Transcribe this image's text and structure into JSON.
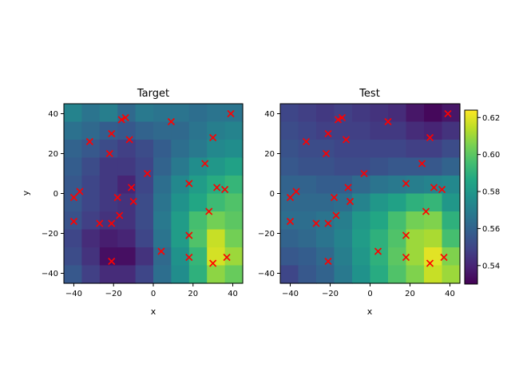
{
  "chart_data": [
    {
      "type": "heatmap",
      "title": "Target",
      "xlabel": "x",
      "ylabel": "y",
      "xlim": [
        -45,
        45
      ],
      "ylim": [
        -45,
        45
      ],
      "xticks": [
        -40,
        -20,
        0,
        20,
        40
      ],
      "yticks": [
        -40,
        -20,
        0,
        20,
        40
      ],
      "grid_x_edges": [
        -45,
        -36,
        -27,
        -18,
        -9,
        0,
        9,
        18,
        27,
        36,
        45
      ],
      "grid_y_edges": [
        -45,
        -36,
        -27,
        -18,
        -9,
        0,
        9,
        18,
        27,
        36,
        45
      ],
      "z_rows_top_to_bottom": [
        [
          0.572,
          0.566,
          0.57,
          0.562,
          0.568,
          0.566,
          0.566,
          0.564,
          0.566,
          0.566
        ],
        [
          0.565,
          0.562,
          0.558,
          0.556,
          0.56,
          0.562,
          0.562,
          0.566,
          0.57,
          0.572
        ],
        [
          0.56,
          0.556,
          0.552,
          0.548,
          0.552,
          0.558,
          0.564,
          0.568,
          0.574,
          0.576
        ],
        [
          0.558,
          0.552,
          0.546,
          0.546,
          0.55,
          0.56,
          0.568,
          0.576,
          0.58,
          0.584
        ],
        [
          0.556,
          0.55,
          0.546,
          0.54,
          0.55,
          0.564,
          0.574,
          0.582,
          0.588,
          0.592
        ],
        [
          0.556,
          0.55,
          0.546,
          0.544,
          0.552,
          0.566,
          0.578,
          0.586,
          0.594,
          0.598
        ],
        [
          0.554,
          0.548,
          0.544,
          0.544,
          0.552,
          0.568,
          0.582,
          0.596,
          0.604,
          0.6
        ],
        [
          0.55,
          0.542,
          0.538,
          0.54,
          0.55,
          0.566,
          0.582,
          0.598,
          0.616,
          0.604
        ],
        [
          0.552,
          0.544,
          0.534,
          0.534,
          0.544,
          0.562,
          0.578,
          0.592,
          0.618,
          0.61
        ],
        [
          0.556,
          0.548,
          0.542,
          0.542,
          0.55,
          0.564,
          0.576,
          0.59,
          0.608,
          0.602
        ]
      ],
      "points": [
        {
          "x": -40,
          "y": -2
        },
        {
          "x": -37,
          "y": 1
        },
        {
          "x": -40,
          "y": -14
        },
        {
          "x": -32,
          "y": 26
        },
        {
          "x": -22,
          "y": 20
        },
        {
          "x": -21,
          "y": 30
        },
        {
          "x": -16,
          "y": 37
        },
        {
          "x": -14,
          "y": 38
        },
        {
          "x": -12,
          "y": 27
        },
        {
          "x": -18,
          "y": -2
        },
        {
          "x": -11,
          "y": 3
        },
        {
          "x": -10,
          "y": -4
        },
        {
          "x": -17,
          "y": -11
        },
        {
          "x": -27,
          "y": -15
        },
        {
          "x": -21,
          "y": -15
        },
        {
          "x": -21,
          "y": -34
        },
        {
          "x": -3,
          "y": 10
        },
        {
          "x": 9,
          "y": 36
        },
        {
          "x": 30,
          "y": 28
        },
        {
          "x": 39,
          "y": 40
        },
        {
          "x": 26,
          "y": 15
        },
        {
          "x": 18,
          "y": 5
        },
        {
          "x": 32,
          "y": 3
        },
        {
          "x": 36,
          "y": 2
        },
        {
          "x": 28,
          "y": -9
        },
        {
          "x": 18,
          "y": -21
        },
        {
          "x": 4,
          "y": -29
        },
        {
          "x": 18,
          "y": -32
        },
        {
          "x": 30,
          "y": -35
        },
        {
          "x": 37,
          "y": -32
        }
      ],
      "marker_color": "#ff0000"
    },
    {
      "type": "heatmap",
      "title": "Test",
      "xlabel": "x",
      "xlim": [
        -45,
        45
      ],
      "ylim": [
        -45,
        45
      ],
      "xticks": [
        -40,
        -20,
        0,
        20,
        40
      ],
      "yticks": [
        -40,
        -20,
        0,
        20,
        40
      ],
      "grid_x_edges": [
        -45,
        -36,
        -27,
        -18,
        -9,
        0,
        9,
        18,
        27,
        36,
        45
      ],
      "grid_y_edges": [
        -45,
        -36,
        -27,
        -18,
        -9,
        0,
        9,
        18,
        27,
        36,
        45
      ],
      "z_rows_top_to_bottom": [
        [
          0.55,
          0.548,
          0.546,
          0.548,
          0.546,
          0.544,
          0.542,
          0.536,
          0.532,
          0.536
        ],
        [
          0.552,
          0.55,
          0.548,
          0.548,
          0.548,
          0.546,
          0.546,
          0.542,
          0.54,
          0.544
        ],
        [
          0.554,
          0.552,
          0.552,
          0.55,
          0.55,
          0.55,
          0.55,
          0.548,
          0.548,
          0.552
        ],
        [
          0.556,
          0.554,
          0.554,
          0.552,
          0.552,
          0.554,
          0.556,
          0.556,
          0.556,
          0.56
        ],
        [
          0.56,
          0.56,
          0.558,
          0.558,
          0.562,
          0.566,
          0.568,
          0.57,
          0.572,
          0.574
        ],
        [
          0.562,
          0.562,
          0.562,
          0.564,
          0.572,
          0.58,
          0.584,
          0.59,
          0.592,
          0.58
        ],
        [
          0.564,
          0.564,
          0.566,
          0.57,
          0.58,
          0.586,
          0.596,
          0.604,
          0.606,
          0.59
        ],
        [
          0.56,
          0.562,
          0.566,
          0.572,
          0.582,
          0.59,
          0.598,
          0.61,
          0.612,
          0.596
        ],
        [
          0.556,
          0.558,
          0.562,
          0.57,
          0.58,
          0.59,
          0.6,
          0.61,
          0.62,
          0.606
        ],
        [
          0.55,
          0.556,
          0.56,
          0.568,
          0.578,
          0.588,
          0.598,
          0.606,
          0.616,
          0.61
        ]
      ],
      "points": [
        {
          "x": -40,
          "y": -2
        },
        {
          "x": -37,
          "y": 1
        },
        {
          "x": -40,
          "y": -14
        },
        {
          "x": -32,
          "y": 26
        },
        {
          "x": -22,
          "y": 20
        },
        {
          "x": -21,
          "y": 30
        },
        {
          "x": -16,
          "y": 37
        },
        {
          "x": -14,
          "y": 38
        },
        {
          "x": -12,
          "y": 27
        },
        {
          "x": -18,
          "y": -2
        },
        {
          "x": -11,
          "y": 3
        },
        {
          "x": -10,
          "y": -4
        },
        {
          "x": -17,
          "y": -11
        },
        {
          "x": -27,
          "y": -15
        },
        {
          "x": -21,
          "y": -15
        },
        {
          "x": -21,
          "y": -34
        },
        {
          "x": -3,
          "y": 10
        },
        {
          "x": 9,
          "y": 36
        },
        {
          "x": 30,
          "y": 28
        },
        {
          "x": 39,
          "y": 40
        },
        {
          "x": 26,
          "y": 15
        },
        {
          "x": 18,
          "y": 5
        },
        {
          "x": 32,
          "y": 3
        },
        {
          "x": 36,
          "y": 2
        },
        {
          "x": 28,
          "y": -9
        },
        {
          "x": 18,
          "y": -21
        },
        {
          "x": 4,
          "y": -29
        },
        {
          "x": 18,
          "y": -32
        },
        {
          "x": 30,
          "y": -35
        },
        {
          "x": 37,
          "y": -32
        }
      ],
      "marker_color": "#ff0000"
    }
  ],
  "colorbar": {
    "colormap": "viridis",
    "range": [
      0.53,
      0.624
    ],
    "ticks": [
      0.54,
      0.56,
      0.58,
      0.6,
      0.62
    ],
    "tick_labels": [
      "0.54",
      "0.56",
      "0.58",
      "0.60",
      "0.62"
    ]
  }
}
